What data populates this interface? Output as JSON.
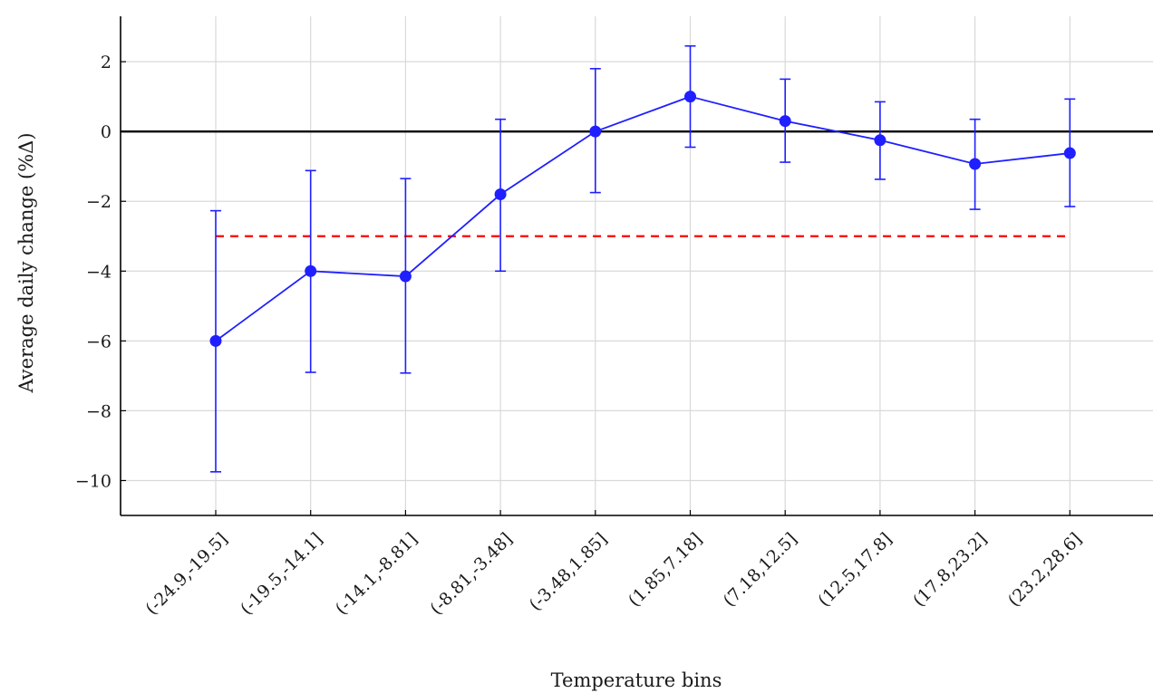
{
  "chart_data": {
    "type": "line",
    "title": "",
    "xlabel": "Temperature bins",
    "ylabel": "Average daily change (%Δ)",
    "ylim": [
      -11,
      3.3
    ],
    "yticks": [
      -10,
      -8,
      -6,
      -4,
      -2,
      0,
      2
    ],
    "ytick_labels": [
      "−10",
      "−8",
      "−6",
      "−4",
      "−2",
      "0",
      "2"
    ],
    "grid": true,
    "legend": "none",
    "categories": [
      "(-24.9,-19.5]",
      "(-19.5,-14.1]",
      "(-14.1,-8.81]",
      "(-8.81,-3.48]",
      "(-3.48,1.85]",
      "(1.85,7.18]",
      "(7.18,12.5]",
      "(12.5,17.8]",
      "(17.8,23.2]",
      "(23.2,28.6]"
    ],
    "series": [
      {
        "values": [
          -6.0,
          -4.0,
          -4.15,
          -1.8,
          0.0,
          1.0,
          0.3,
          -0.25,
          -0.93,
          -0.62
        ],
        "error_low": [
          -9.75,
          -6.9,
          -6.92,
          -4.0,
          -1.75,
          -0.45,
          -0.88,
          -1.37,
          -2.23,
          -2.15
        ],
        "error_high": [
          -2.27,
          -1.12,
          -1.35,
          0.35,
          1.8,
          2.45,
          1.5,
          0.85,
          0.35,
          0.93
        ],
        "color": "#1f1fff"
      }
    ],
    "reference_lines": [
      {
        "y": 0,
        "color": "#000000",
        "style": "solid"
      },
      {
        "y": -3,
        "color": "#ff0000",
        "style": "dashed",
        "x_from": 0,
        "x_to": 9
      }
    ]
  }
}
